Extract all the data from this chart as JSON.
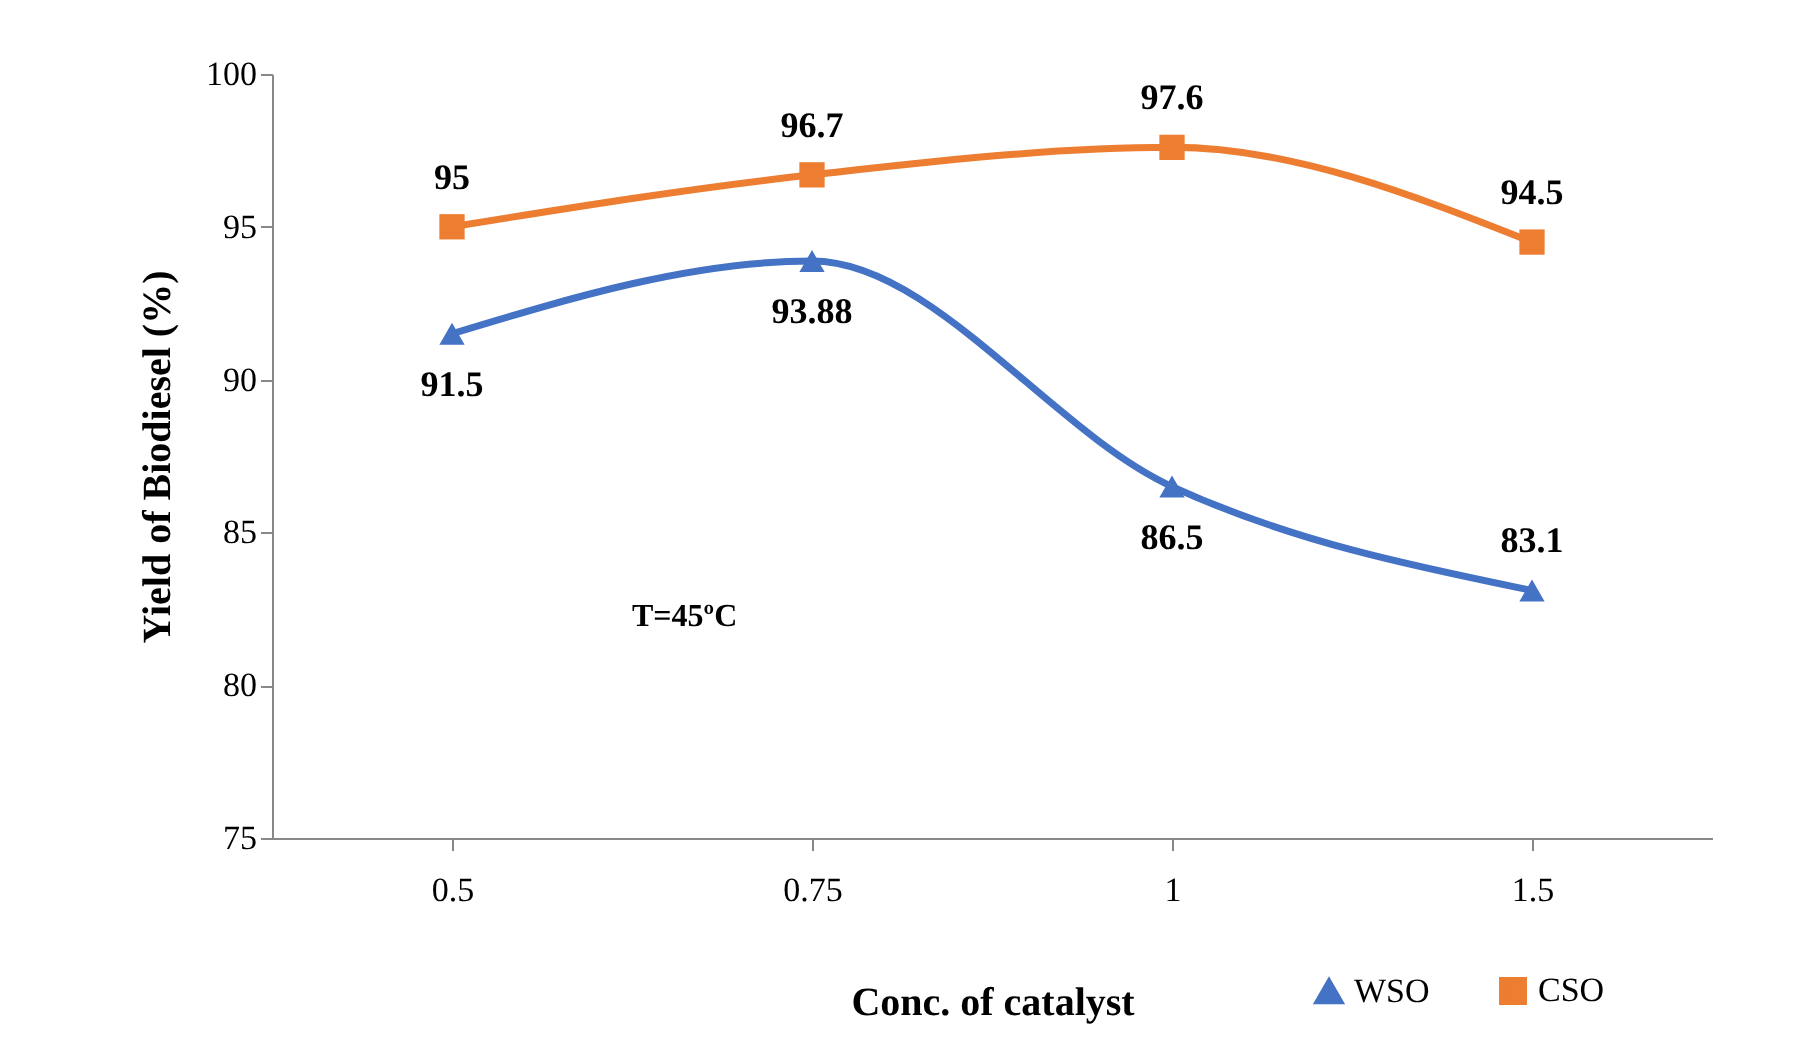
{
  "chart_data": {
    "type": "line",
    "xlabel": "Conc. of catalyst",
    "ylabel": "Yield of Biodiesel (%)",
    "categories": [
      "0.5",
      "0.75",
      "1",
      "1.5"
    ],
    "series": [
      {
        "name": "WSO",
        "color": "#4472c4",
        "marker": "triangle",
        "values": [
          91.5,
          93.88,
          86.5,
          83.1
        ]
      },
      {
        "name": "CSO",
        "color": "#ed7d31",
        "marker": "square",
        "values": [
          95,
          96.7,
          97.6,
          94.5
        ]
      }
    ],
    "ylim": [
      75,
      100
    ],
    "yticks": [
      75,
      80,
      85,
      90,
      95,
      100
    ],
    "grid": false,
    "legend": "bottom right",
    "data_labels": true,
    "annotations": [
      "T=45ºC"
    ]
  }
}
